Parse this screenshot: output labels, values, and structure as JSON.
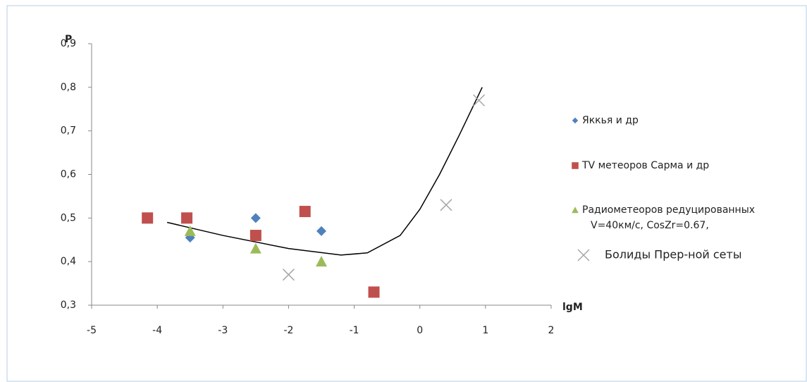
{
  "chart_data": {
    "type": "scatter",
    "y_label": "P",
    "x_label": "lgM",
    "xlim": [
      -5,
      2
    ],
    "xticks": [
      -5,
      -4,
      -3,
      -2,
      -1,
      0,
      1,
      2
    ],
    "ylim": [
      0.3,
      0.9
    ],
    "yticks": [
      {
        "value": 0.3,
        "label": "0,3"
      },
      {
        "value": 0.4,
        "label": "0,4"
      },
      {
        "value": 0.5,
        "label": "0,5"
      },
      {
        "value": 0.6,
        "label": "0,6"
      },
      {
        "value": 0.7,
        "label": "0,7"
      },
      {
        "value": 0.8,
        "label": "0,8"
      },
      {
        "value": 0.9,
        "label": "0,9"
      }
    ],
    "series": [
      {
        "name": "Яккья и др",
        "color": "#4f81bd",
        "marker": "diamond",
        "x": [
          -3.5,
          -2.5,
          -1.5
        ],
        "values": [
          0.455,
          0.5,
          0.47
        ]
      },
      {
        "name": "TV метеоров Сарма и др",
        "color": "#c0504d",
        "marker": "square",
        "x": [
          -4.15,
          -3.55,
          -2.5,
          -1.75,
          -0.7
        ],
        "values": [
          0.5,
          0.5,
          0.46,
          0.515,
          0.33
        ]
      },
      {
        "name": "Радиометеоров редуцированных\nV=40км/с, CosZr=0.67,",
        "color": "#9bbb59",
        "marker": "triangle",
        "x": [
          -3.5,
          -2.5,
          -1.5
        ],
        "values": [
          0.47,
          0.43,
          0.4
        ]
      },
      {
        "name": "Болиды Прер-ной сеты",
        "color": "#a6a6a6",
        "marker": "cross",
        "x": [
          -2,
          0.4,
          0.9
        ],
        "values": [
          0.37,
          0.53,
          0.77
        ]
      }
    ],
    "trend": {
      "color": "#000000",
      "x": [
        -3.85,
        -3,
        -2,
        -1.2,
        -0.8,
        -0.3,
        0,
        0.3,
        0.6,
        0.95
      ],
      "values": [
        0.49,
        0.46,
        0.43,
        0.415,
        0.42,
        0.46,
        0.52,
        0.6,
        0.69,
        0.8
      ]
    }
  }
}
